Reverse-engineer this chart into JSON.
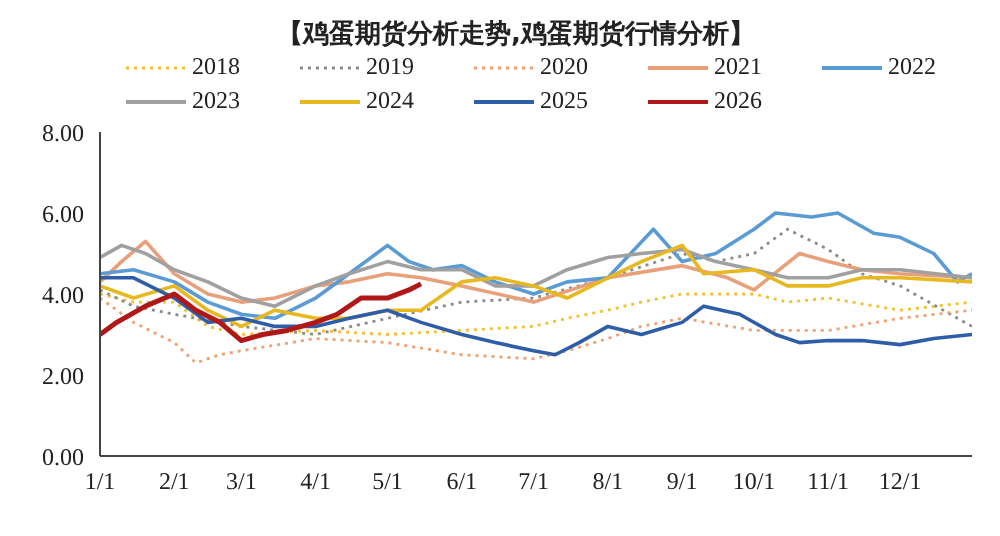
{
  "chart_data": {
    "type": "line",
    "title": "【鸡蛋期货分析走势,鸡蛋期货行情分析】",
    "xlim": [
      "--01-01",
      "--12-31"
    ],
    "xticks": [
      {
        "value": "--01-01",
        "label": "1/1"
      },
      {
        "value": "--02-01",
        "label": "2/1"
      },
      {
        "value": "--03-01",
        "label": "3/1"
      },
      {
        "value": "--04-01",
        "label": "4/1"
      },
      {
        "value": "--05-01",
        "label": "5/1"
      },
      {
        "value": "--06-01",
        "label": "6/1"
      },
      {
        "value": "--07-01",
        "label": "7/1"
      },
      {
        "value": "--08-01",
        "label": "8/1"
      },
      {
        "value": "--09-01",
        "label": "9/1"
      },
      {
        "value": "--10-01",
        "label": "10/1"
      },
      {
        "value": "--11-01",
        "label": "11/1"
      },
      {
        "value": "--12-01",
        "label": "12/1"
      }
    ],
    "ylim": [
      0,
      8
    ],
    "yticks": [
      {
        "value": 0,
        "label": "0.00"
      },
      {
        "value": 2,
        "label": "2.00"
      },
      {
        "value": 4,
        "label": "4.00"
      },
      {
        "value": 6,
        "label": "6.00"
      },
      {
        "value": 8,
        "label": "8.00"
      }
    ],
    "grid": false,
    "legend": "top",
    "marker": "none",
    "series": [
      {
        "name": "2018",
        "color": "#f2c12e",
        "line_style": "dotted",
        "x": [
          "--01-01",
          "--01-15",
          "--02-01",
          "--02-15",
          "--03-01",
          "--04-01",
          "--05-01",
          "--06-01",
          "--07-01",
          "--07-15",
          "--08-01",
          "--08-15",
          "--09-01",
          "--10-01",
          "--10-15",
          "--11-01",
          "--12-01",
          "--12-31"
        ],
        "values": [
          4.0,
          3.8,
          3.8,
          3.2,
          3.0,
          3.1,
          3.0,
          3.1,
          3.2,
          3.4,
          3.6,
          3.8,
          4.0,
          4.0,
          3.8,
          3.9,
          3.6,
          3.8
        ]
      },
      {
        "name": "2019",
        "color": "#8c8c8c",
        "line_style": "dotted",
        "x": [
          "--01-01",
          "--01-15",
          "--02-01",
          "--03-01",
          "--04-01",
          "--05-01",
          "--06-01",
          "--07-01",
          "--08-01",
          "--09-01",
          "--09-15",
          "--10-01",
          "--10-15",
          "--11-01",
          "--11-15",
          "--12-01",
          "--12-31"
        ],
        "values": [
          4.1,
          3.7,
          3.5,
          3.2,
          3.0,
          3.4,
          3.8,
          3.9,
          4.4,
          5.0,
          4.8,
          5.0,
          5.6,
          5.1,
          4.5,
          4.2,
          3.2
        ]
      },
      {
        "name": "2020",
        "color": "#f0a070",
        "line_style": "dotted",
        "x": [
          "--01-01",
          "--01-15",
          "--02-01",
          "--02-10",
          "--02-20",
          "--03-01",
          "--04-01",
          "--05-01",
          "--06-01",
          "--07-01",
          "--07-15",
          "--08-01",
          "--08-15",
          "--09-01",
          "--10-01",
          "--11-01",
          "--12-01",
          "--12-31"
        ],
        "values": [
          3.9,
          3.3,
          2.8,
          2.3,
          2.5,
          2.6,
          2.9,
          2.8,
          2.5,
          2.4,
          2.6,
          2.9,
          3.2,
          3.4,
          3.1,
          3.1,
          3.4,
          3.6
        ]
      },
      {
        "name": "2021",
        "color": "#e8a07a",
        "line_style": "solid",
        "x": [
          "--01-01",
          "--01-10",
          "--01-20",
          "--02-01",
          "--02-15",
          "--03-01",
          "--03-15",
          "--04-01",
          "--04-15",
          "--05-01",
          "--05-15",
          "--06-01",
          "--07-01",
          "--08-01",
          "--09-01",
          "--09-20",
          "--10-01",
          "--10-20",
          "--11-01",
          "--11-15",
          "--12-01",
          "--12-31"
        ],
        "values": [
          4.3,
          4.8,
          5.3,
          4.5,
          4.0,
          3.8,
          3.9,
          4.2,
          4.3,
          4.5,
          4.4,
          4.2,
          3.8,
          4.4,
          4.7,
          4.4,
          4.1,
          5.0,
          4.8,
          4.6,
          4.5,
          4.4
        ]
      },
      {
        "name": "2022",
        "color": "#5b9bd5",
        "line_style": "solid",
        "x": [
          "--01-01",
          "--01-15",
          "--02-01",
          "--02-15",
          "--03-01",
          "--03-15",
          "--04-01",
          "--04-15",
          "--05-01",
          "--05-10",
          "--05-20",
          "--06-01",
          "--06-15",
          "--07-01",
          "--07-15",
          "--08-01",
          "--08-20",
          "--09-01",
          "--09-15",
          "--10-01",
          "--10-10",
          "--10-25",
          "--11-05",
          "--11-20",
          "--12-01",
          "--12-15",
          "--12-25",
          "--12-31"
        ],
        "values": [
          4.5,
          4.6,
          4.3,
          3.8,
          3.5,
          3.4,
          3.9,
          4.5,
          5.2,
          4.8,
          4.6,
          4.7,
          4.3,
          4.0,
          4.3,
          4.4,
          5.6,
          4.8,
          5.0,
          5.6,
          6.0,
          5.9,
          6.0,
          5.5,
          5.4,
          5.0,
          4.3,
          4.5
        ]
      },
      {
        "name": "2023",
        "color": "#a0a0a0",
        "line_style": "solid",
        "x": [
          "--01-01",
          "--01-10",
          "--01-20",
          "--02-01",
          "--02-15",
          "--03-01",
          "--03-15",
          "--04-01",
          "--04-15",
          "--05-01",
          "--05-15",
          "--06-01",
          "--06-15",
          "--07-01",
          "--07-15",
          "--08-01",
          "--08-15",
          "--09-01",
          "--09-15",
          "--10-01",
          "--10-15",
          "--11-01",
          "--11-15",
          "--12-01",
          "--12-31"
        ],
        "values": [
          4.9,
          5.2,
          5.0,
          4.6,
          4.3,
          3.9,
          3.7,
          4.2,
          4.5,
          4.8,
          4.6,
          4.6,
          4.2,
          4.2,
          4.6,
          4.9,
          5.0,
          5.1,
          4.8,
          4.6,
          4.4,
          4.4,
          4.6,
          4.6,
          4.4
        ]
      },
      {
        "name": "2024",
        "color": "#e8b820",
        "line_style": "solid",
        "x": [
          "--01-01",
          "--01-15",
          "--02-01",
          "--02-15",
          "--03-01",
          "--03-15",
          "--04-01",
          "--04-15",
          "--05-01",
          "--05-15",
          "--06-01",
          "--06-15",
          "--07-01",
          "--07-15",
          "--08-01",
          "--08-15",
          "--09-01",
          "--09-10",
          "--10-01",
          "--10-15",
          "--11-01",
          "--11-15",
          "--12-01",
          "--12-31"
        ],
        "values": [
          4.2,
          3.9,
          4.2,
          3.6,
          3.2,
          3.6,
          3.4,
          3.4,
          3.6,
          3.6,
          4.3,
          4.4,
          4.2,
          3.9,
          4.4,
          4.8,
          5.2,
          4.5,
          4.6,
          4.2,
          4.2,
          4.4,
          4.4,
          4.3
        ]
      },
      {
        "name": "2025",
        "color": "#2e5ea8",
        "line_style": "solid",
        "x": [
          "--01-01",
          "--01-15",
          "--02-01",
          "--02-15",
          "--03-01",
          "--03-15",
          "--04-01",
          "--04-15",
          "--05-01",
          "--05-15",
          "--06-01",
          "--06-15",
          "--07-01",
          "--07-10",
          "--07-20",
          "--08-01",
          "--08-15",
          "--09-01",
          "--09-10",
          "--09-25",
          "--10-10",
          "--10-20",
          "--11-01",
          "--11-15",
          "--12-01",
          "--12-15",
          "--12-31"
        ],
        "values": [
          4.4,
          4.4,
          3.9,
          3.3,
          3.4,
          3.2,
          3.2,
          3.4,
          3.6,
          3.3,
          3.0,
          2.8,
          2.6,
          2.5,
          2.8,
          3.2,
          3.0,
          3.3,
          3.7,
          3.5,
          3.0,
          2.8,
          2.85,
          2.85,
          2.75,
          2.9,
          3.0
        ]
      },
      {
        "name": "2026",
        "color": "#b01818",
        "line_style": "solid",
        "x": [
          "--01-01",
          "--01-08",
          "--01-20",
          "--02-01",
          "--02-10",
          "--02-20",
          "--03-01",
          "--03-10",
          "--03-20",
          "--04-01",
          "--04-10",
          "--04-20",
          "--05-01",
          "--05-10",
          "--05-15"
        ],
        "values": [
          3.0,
          3.3,
          3.7,
          4.0,
          3.6,
          3.3,
          2.85,
          3.0,
          3.1,
          3.3,
          3.5,
          3.9,
          3.9,
          4.1,
          4.25
        ]
      }
    ]
  }
}
